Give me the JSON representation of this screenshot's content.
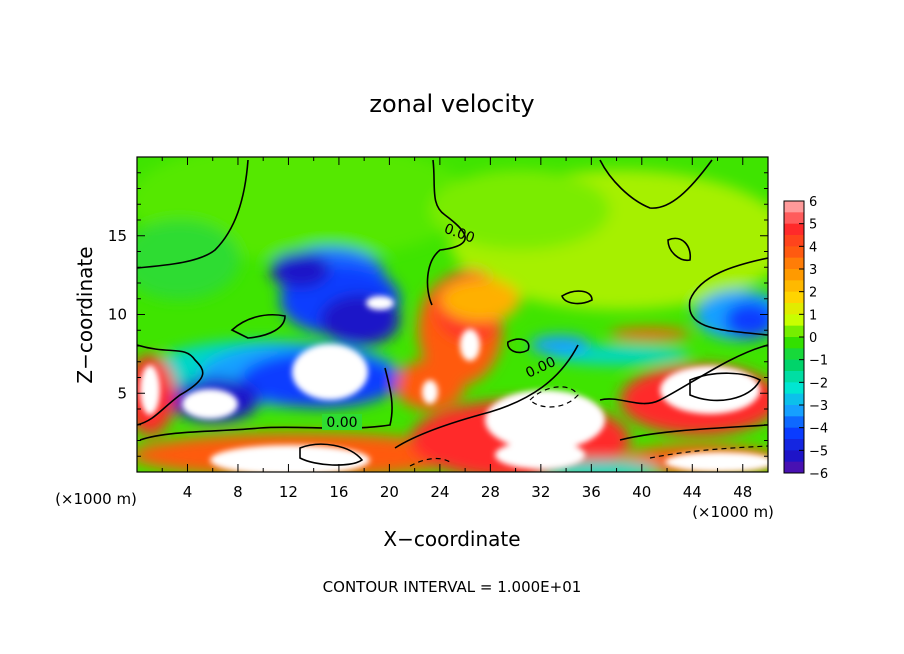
{
  "chart_data": {
    "type": "heatmap",
    "title": "zonal velocity",
    "xlabel": "X−coordinate",
    "ylabel": "Z−coordinate",
    "x_unit_label": "(×1000 m)",
    "x_unit_label_right": "(×1000 m)",
    "xlim": [
      0,
      50
    ],
    "ylim": [
      0,
      20
    ],
    "x_ticks": [
      4,
      8,
      12,
      16,
      20,
      24,
      28,
      32,
      36,
      40,
      44,
      48
    ],
    "y_ticks": [
      5,
      10,
      15
    ],
    "colorbar": {
      "ticks": [
        6,
        5,
        4,
        3,
        2,
        1,
        0,
        -1,
        -2,
        -3,
        -4,
        -5,
        -6
      ],
      "tick_labels": [
        "6",
        "5",
        "4",
        "3",
        "2",
        "1",
        "0",
        "−1",
        "−2",
        "−3",
        "−4",
        "−5",
        "−6"
      ],
      "colors": [
        "#ff9a9a",
        "#ff2a2a",
        "#ff5a10",
        "#ff9a00",
        "#ffd400",
        "#c8ff00",
        "#33e000",
        "#00d46a",
        "#00e6d2",
        "#16a0ff",
        "#0a3cff",
        "#1e14c8",
        "#6c0ea0"
      ]
    },
    "contour_labels": [
      "0.00",
      "0.00",
      "0.00"
    ],
    "footer": "CONTOUR INTERVAL = 1.000E+01"
  }
}
